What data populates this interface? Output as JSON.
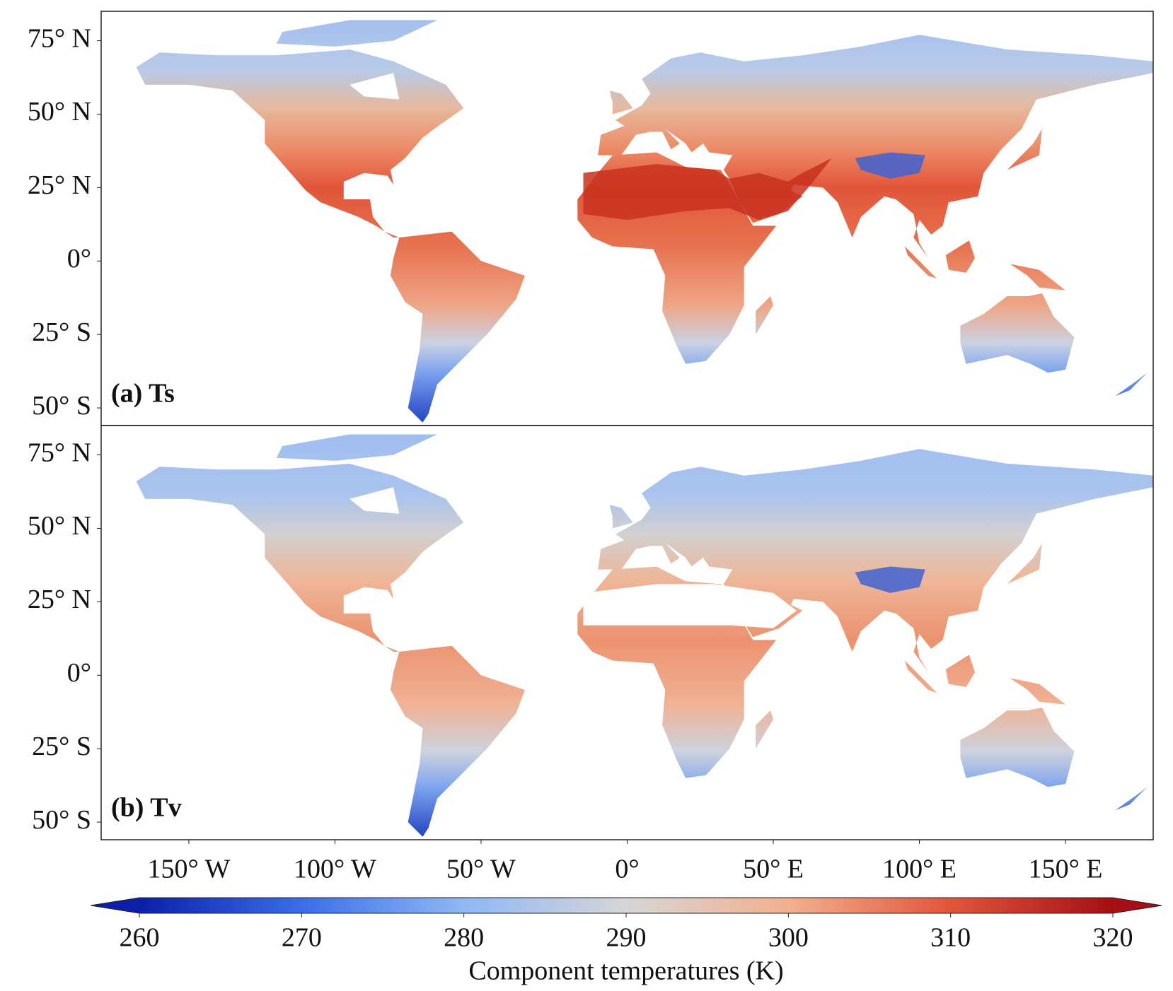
{
  "map": {
    "xlim": [
      -180,
      180
    ],
    "ylim": [
      -56,
      85
    ],
    "panels": [
      {
        "label": "(a) Ts"
      },
      {
        "label": "(b) Tv"
      }
    ],
    "yticks": [
      {
        "value": 75,
        "label": "75° N"
      },
      {
        "value": 50,
        "label": "50° N"
      },
      {
        "value": 25,
        "label": "25° N"
      },
      {
        "value": 0,
        "label": "0°"
      },
      {
        "value": -25,
        "label": "25° S"
      },
      {
        "value": -50,
        "label": "50° S"
      }
    ],
    "xticks": [
      {
        "value": -150,
        "label": "150° W"
      },
      {
        "value": -100,
        "label": "100° W"
      },
      {
        "value": -50,
        "label": "50° W"
      },
      {
        "value": 0,
        "label": "0°"
      },
      {
        "value": 50,
        "label": "50° E"
      },
      {
        "value": 100,
        "label": "100° E"
      },
      {
        "value": 150,
        "label": "150° E"
      }
    ]
  },
  "colorbar": {
    "label": "Component temperatures (K)",
    "lim": [
      260,
      320
    ],
    "ticks": [
      260,
      270,
      280,
      290,
      300,
      310,
      320
    ],
    "colors": [
      "#0b1fa8",
      "#3a6ee8",
      "#8fb8f5",
      "#d6d6d6",
      "#f2b08f",
      "#e2553a",
      "#a50f15"
    ],
    "extend": "both"
  }
}
